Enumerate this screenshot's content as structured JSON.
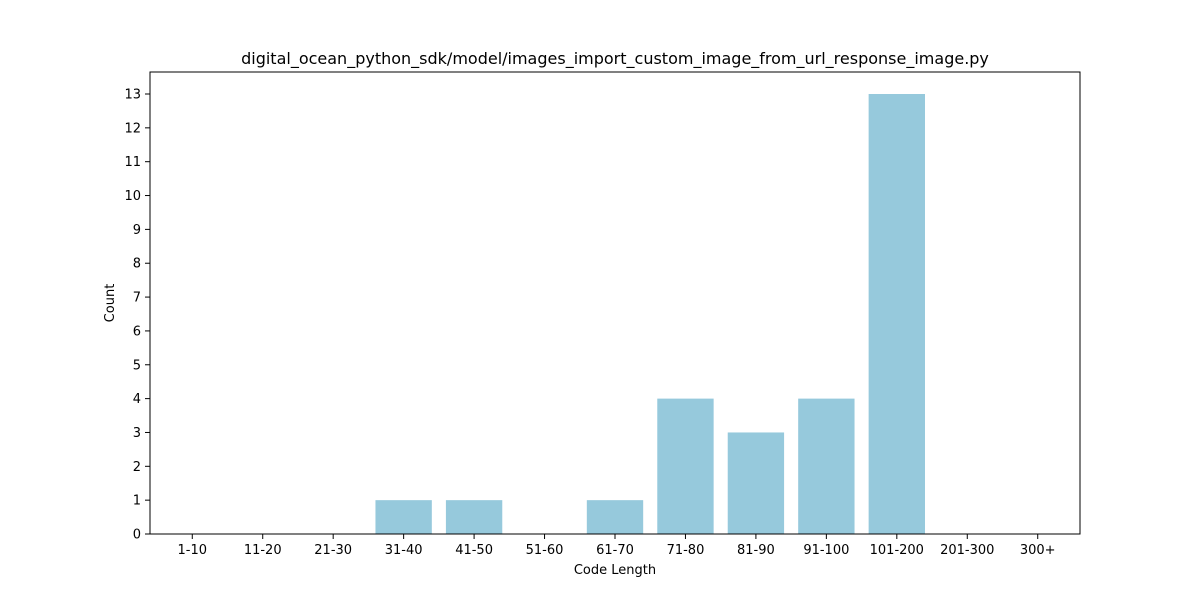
{
  "chart_data": {
    "type": "bar",
    "title": "digital_ocean_python_sdk/model/images_import_custom_image_from_url_response_image.py",
    "xlabel": "Code Length",
    "ylabel": "Count",
    "categories": [
      "1-10",
      "11-20",
      "21-30",
      "31-40",
      "41-50",
      "51-60",
      "61-70",
      "71-80",
      "81-90",
      "91-100",
      "101-200",
      "201-300",
      "300+"
    ],
    "values": [
      0,
      0,
      0,
      1,
      1,
      0,
      1,
      4,
      3,
      4,
      13,
      0,
      0
    ],
    "ylim": [
      0,
      13.65
    ],
    "yticks": [
      0,
      1,
      2,
      3,
      4,
      5,
      6,
      7,
      8,
      9,
      10,
      11,
      12,
      13
    ],
    "grid": false,
    "bar_color": "#96c9dc"
  }
}
